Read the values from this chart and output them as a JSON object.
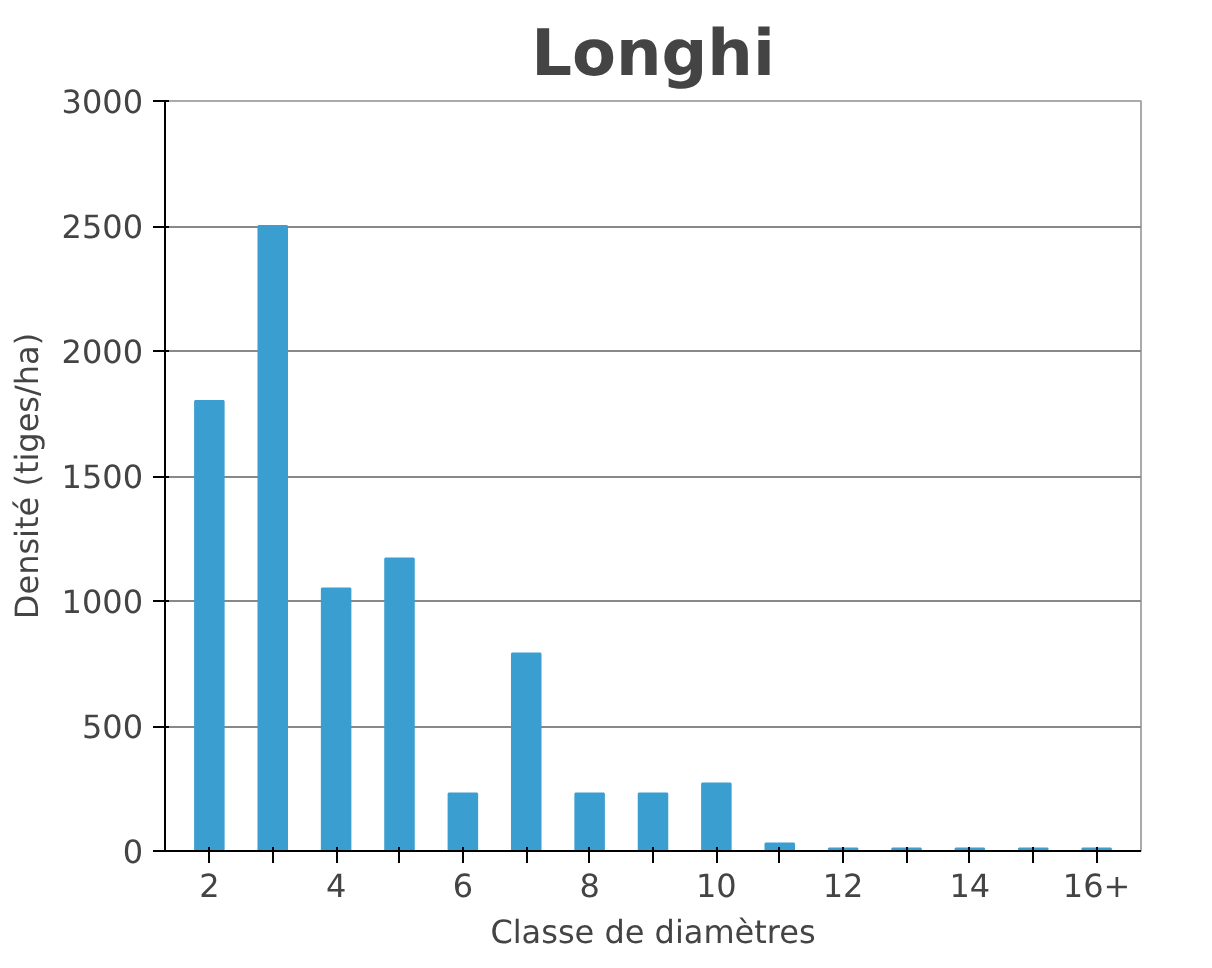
{
  "chart_data": {
    "type": "bar",
    "title": "Longhi",
    "xlabel": "Classe de diamètres",
    "ylabel": "Densité (tiges/ha)",
    "categories": [
      "2",
      null,
      "4",
      null,
      "6",
      null,
      "8",
      null,
      "10",
      null,
      "12",
      null,
      "14",
      null,
      "16+"
    ],
    "values": [
      1800,
      2500,
      1050,
      1170,
      230,
      790,
      230,
      230,
      270,
      30,
      10,
      10,
      10,
      10,
      10
    ],
    "color": "#3a9fd0",
    "ylim": [
      0,
      3000
    ],
    "yticks": [
      0,
      500,
      1000,
      1500,
      2000,
      2500,
      3000
    ],
    "grid": "y"
  }
}
